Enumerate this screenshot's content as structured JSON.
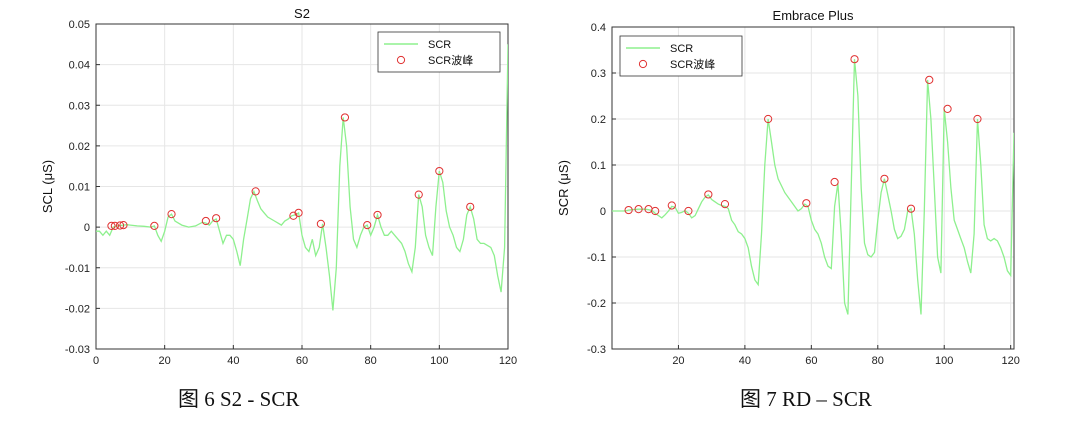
{
  "colors": {
    "line": "#8ef08e",
    "peak_marker": "#e03030",
    "grid": "#e6e6e6",
    "axis": "#333333"
  },
  "captions": [
    "图 6 S2 - SCR",
    "图 7 RD – SCR"
  ],
  "chart_data": [
    {
      "type": "line",
      "title": "S2",
      "xlabel": "",
      "ylabel": "SCL (μS)",
      "xlim": [
        0,
        120
      ],
      "ylim": [
        -0.03,
        0.05
      ],
      "xticks": [
        0,
        20,
        40,
        60,
        80,
        100,
        120
      ],
      "yticks": [
        -0.03,
        -0.02,
        -0.01,
        0,
        0.01,
        0.02,
        0.03,
        0.04,
        0.05
      ],
      "ytick_labels": [
        "-0.03",
        "-0.02",
        "-0.01",
        "0",
        "0.01",
        "0.02",
        "0.03",
        "0.04",
        "0.05"
      ],
      "grid": true,
      "legend_position": "top-right",
      "series": [
        {
          "name": "SCR",
          "style": "line",
          "x": [
            0,
            1,
            2,
            3,
            4,
            5,
            6,
            7,
            8,
            9,
            10,
            12,
            14,
            16,
            17,
            18,
            19,
            20,
            21,
            22,
            23,
            25,
            27,
            29,
            31,
            32,
            33,
            34,
            35,
            36,
            37,
            38,
            39,
            40,
            41,
            42,
            43,
            44,
            45,
            46,
            47,
            48,
            49,
            50,
            52,
            54,
            55,
            56,
            57,
            58,
            59,
            60,
            61,
            62,
            63,
            64,
            65,
            66,
            67,
            68,
            69,
            70,
            71,
            72,
            73,
            74,
            75,
            76,
            77,
            78,
            79,
            80,
            81,
            82,
            83,
            84,
            85,
            86,
            87,
            88,
            89,
            90,
            91,
            92,
            93,
            94,
            95,
            96,
            97,
            98,
            99,
            100,
            101,
            102,
            103,
            104,
            105,
            106,
            107,
            108,
            109,
            110,
            111,
            112,
            113,
            114,
            115,
            116,
            117,
            118,
            119,
            120
          ],
          "y": [
            -0.001,
            -0.001,
            -0.002,
            -0.001,
            -0.002,
            0.0,
            0.0003,
            0.0004,
            0.0005,
            0.0006,
            0.0005,
            0.0003,
            0.0002,
            0.0,
            0.0003,
            -0.002,
            -0.0035,
            -0.001,
            0.0025,
            0.0032,
            0.0015,
            0.0005,
            0.0,
            0.0003,
            0.0012,
            0.001,
            0.0005,
            0.0015,
            0.002,
            -0.001,
            -0.004,
            -0.002,
            -0.002,
            -0.003,
            -0.006,
            -0.0095,
            -0.003,
            0.002,
            0.007,
            0.0088,
            0.0065,
            0.0045,
            0.0035,
            0.0025,
            0.0015,
            0.0005,
            0.0015,
            0.002,
            0.0028,
            0.003,
            0.0035,
            -0.002,
            -0.005,
            -0.006,
            -0.003,
            -0.007,
            -0.005,
            0.0008,
            -0.005,
            -0.012,
            -0.0205,
            -0.01,
            0.015,
            0.027,
            0.02,
            0.005,
            -0.003,
            -0.005,
            -0.002,
            0.0,
            0.0005,
            -0.002,
            0.0,
            0.003,
            0.0,
            -0.002,
            -0.002,
            -0.001,
            -0.002,
            -0.003,
            -0.004,
            -0.006,
            -0.009,
            -0.011,
            -0.005,
            0.008,
            0.005,
            -0.002,
            -0.005,
            -0.007,
            0.005,
            0.0138,
            0.011,
            0.004,
            0.0,
            -0.002,
            -0.005,
            -0.006,
            -0.003,
            0.003,
            0.005,
            0.002,
            -0.003,
            -0.004,
            -0.004,
            -0.0045,
            -0.005,
            -0.007,
            -0.012,
            -0.016,
            -0.005,
            0.045
          ]
        },
        {
          "name": "SCR波峰",
          "style": "marker",
          "x": [
            4.5,
            5.5,
            7.0,
            8.0,
            17.0,
            22.0,
            32.0,
            35.0,
            46.5,
            57.5,
            59.0,
            65.5,
            72.5,
            79.0,
            82.0,
            94.0,
            100.0,
            109.0
          ],
          "y": [
            0.0003,
            0.0003,
            0.0004,
            0.0005,
            0.0003,
            0.0032,
            0.0015,
            0.0022,
            0.0088,
            0.0028,
            0.0035,
            0.0008,
            0.027,
            0.0005,
            0.003,
            0.008,
            0.0138,
            0.005
          ]
        }
      ]
    },
    {
      "type": "line",
      "title": "Embrace Plus",
      "xlabel": "",
      "ylabel": "SCR (μS)",
      "xlim": [
        0,
        121
      ],
      "ylim": [
        -0.3,
        0.4
      ],
      "xticks": [
        20,
        40,
        60,
        80,
        100,
        120
      ],
      "yticks": [
        -0.3,
        -0.2,
        -0.1,
        0,
        0.1,
        0.2,
        0.3,
        0.4
      ],
      "ytick_labels": [
        "-0.3",
        "-0.2",
        "-0.1",
        "0",
        "0.1",
        "0.2",
        "0.3",
        "0.4"
      ],
      "grid": true,
      "legend_position": "top-left",
      "series": [
        {
          "name": "SCR",
          "style": "line",
          "x": [
            0,
            2,
            4,
            5,
            6,
            8,
            10,
            11,
            12,
            13,
            14,
            15,
            16,
            17,
            18,
            19,
            20,
            21,
            22,
            23,
            24,
            25,
            26,
            27,
            28,
            29,
            30,
            31,
            32,
            33,
            34,
            35,
            36,
            37,
            38,
            39,
            40,
            41,
            42,
            43,
            44,
            45,
            46,
            47,
            48,
            49,
            50,
            52,
            54,
            56,
            57,
            58,
            59,
            60,
            61,
            62,
            63,
            64,
            65,
            66,
            67,
            68,
            69,
            70,
            71,
            72,
            73,
            74,
            75,
            76,
            77,
            78,
            79,
            80,
            81,
            82,
            83,
            84,
            85,
            86,
            87,
            88,
            89,
            90,
            91,
            92,
            93,
            94,
            95,
            96,
            97,
            98,
            99,
            100,
            101,
            102,
            103,
            104,
            105,
            106,
            107,
            108,
            109,
            110,
            111,
            112,
            113,
            114,
            115,
            116,
            117,
            118,
            119,
            120,
            121
          ],
          "y": [
            0.0,
            0.0,
            0.0,
            0.002,
            0.003,
            0.004,
            0.004,
            0.003,
            0.001,
            -0.005,
            -0.01,
            -0.015,
            -0.008,
            0.0,
            0.01,
            0.008,
            -0.005,
            -0.003,
            0.001,
            -0.005,
            -0.015,
            -0.01,
            0.005,
            0.02,
            0.03,
            0.035,
            0.025,
            0.02,
            0.015,
            0.012,
            0.01,
            0.005,
            -0.02,
            -0.03,
            -0.045,
            -0.05,
            -0.06,
            -0.08,
            -0.12,
            -0.15,
            -0.16,
            -0.05,
            0.1,
            0.2,
            0.15,
            0.1,
            0.07,
            0.04,
            0.02,
            0.0,
            0.005,
            0.015,
            0.01,
            -0.02,
            -0.04,
            -0.05,
            -0.07,
            -0.1,
            -0.12,
            -0.125,
            0.01,
            0.06,
            -0.05,
            -0.2,
            -0.225,
            0.05,
            0.33,
            0.25,
            0.05,
            -0.07,
            -0.095,
            -0.1,
            -0.09,
            -0.02,
            0.04,
            0.07,
            0.035,
            0.0,
            -0.04,
            -0.06,
            -0.055,
            -0.04,
            0.0,
            0.005,
            -0.05,
            -0.15,
            -0.225,
            0.0,
            0.285,
            0.2,
            0.05,
            -0.1,
            -0.135,
            0.222,
            0.15,
            0.05,
            -0.02,
            -0.04,
            -0.06,
            -0.08,
            -0.11,
            -0.135,
            -0.05,
            0.2,
            0.1,
            -0.03,
            -0.06,
            -0.065,
            -0.06,
            -0.065,
            -0.08,
            -0.1,
            -0.13,
            -0.14,
            0.17
          ]
        },
        {
          "name": "SCR波峰",
          "style": "marker",
          "x": [
            5,
            8,
            11,
            13,
            18,
            23,
            29,
            34,
            47,
            58.5,
            67,
            73,
            82,
            90,
            95.5,
            101,
            110
          ],
          "y": [
            0.002,
            0.004,
            0.004,
            0.0,
            0.012,
            0.0,
            0.036,
            0.015,
            0.2,
            0.017,
            0.063,
            0.33,
            0.07,
            0.005,
            0.285,
            0.222,
            0.2
          ]
        }
      ]
    }
  ]
}
